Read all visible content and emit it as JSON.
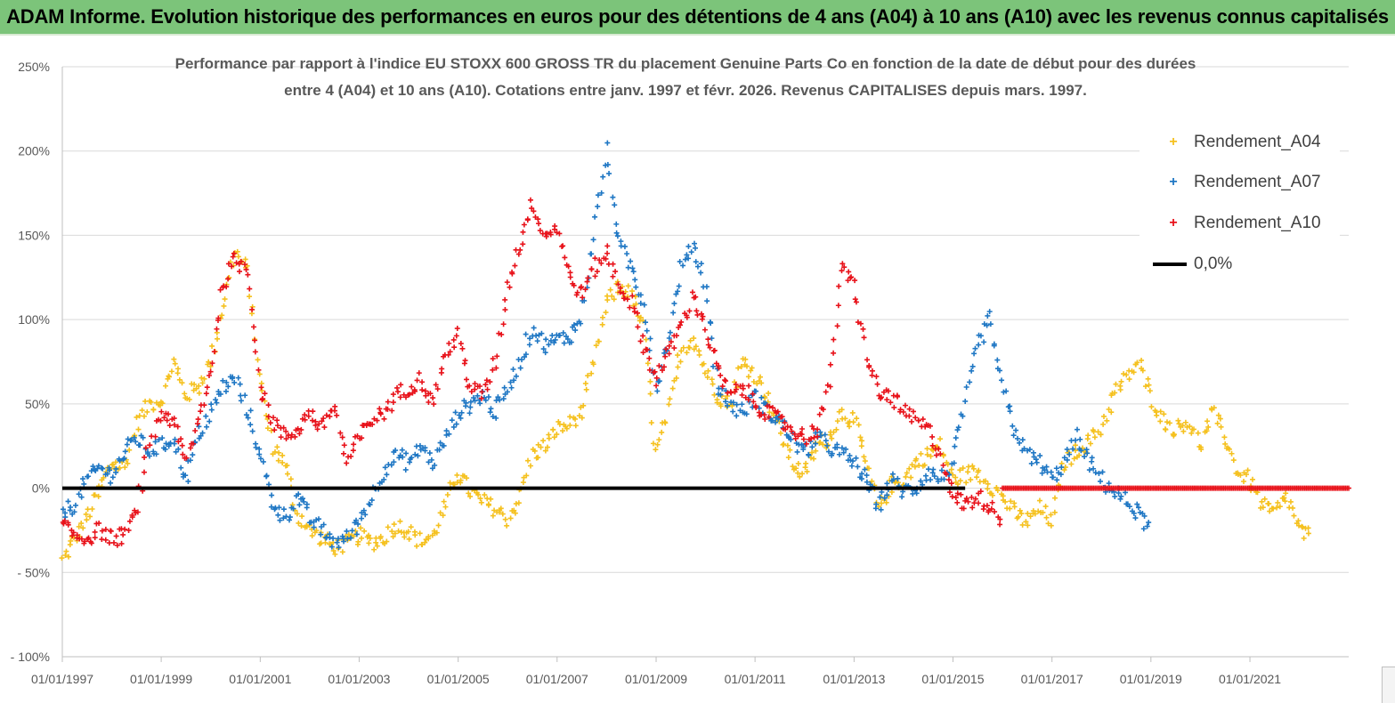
{
  "banner": {
    "title": "ADAM Informe. Evolution historique des performances en euros pour des détentions de 4 ans (A04) à 10 ans (A10) avec les revenus connus capitalisés"
  },
  "chart_data": {
    "type": "scatter",
    "title_line_1": "Performance par rapport à l'indice EU STOXX 600 GROSS TR  du placement Genuine Parts Co en fonction de la date de début pour des durées",
    "title_line_2": "entre 4 (A04) et 10 ans (A10).  Cotations entre janv. 1997 et févr. 2026. Revenus  CAPITALISES depuis mars. 1997.",
    "xlabel": "",
    "ylabel": "",
    "x_range": [
      "1997-01-01",
      "2022-12-31"
    ],
    "ylim": [
      -100,
      250
    ],
    "y_ticks": [
      250,
      200,
      150,
      100,
      50,
      0,
      -50,
      -100
    ],
    "y_tick_labels": [
      "250%",
      "200%",
      "150%",
      "100%",
      "50%",
      "0%",
      "- 50%",
      "- 100%"
    ],
    "x_ticks": [
      "1997-01-01",
      "1999-01-01",
      "2001-01-01",
      "2003-01-01",
      "2005-01-01",
      "2007-01-01",
      "2009-01-01",
      "2011-01-01",
      "2013-01-01",
      "2015-01-01",
      "2017-01-01",
      "2019-01-01",
      "2021-01-01"
    ],
    "x_tick_labels": [
      "01/01/1997",
      "01/01/1999",
      "01/01/2001",
      "01/01/2003",
      "01/01/2005",
      "01/01/2007",
      "01/01/2009",
      "01/01/2011",
      "01/01/2013",
      "01/01/2015",
      "01/01/2017",
      "01/01/2019",
      "01/01/2021"
    ],
    "grid": "horizontal",
    "legend_position": "top-right",
    "series": [
      {
        "name": "Rendement_A04",
        "color": "#f5c11f",
        "points": [
          [
            "1997-01-01",
            -43
          ],
          [
            "1997-04-01",
            -30
          ],
          [
            "1997-07-01",
            -18
          ],
          [
            "1997-10-01",
            -2
          ],
          [
            "1998-01-01",
            15
          ],
          [
            "1998-04-01",
            12
          ],
          [
            "1998-07-01",
            38
          ],
          [
            "1998-10-01",
            50
          ],
          [
            "1999-01-01",
            52
          ],
          [
            "1999-04-01",
            75
          ],
          [
            "1999-07-01",
            55
          ],
          [
            "1999-10-01",
            60
          ],
          [
            "2000-01-01",
            75
          ],
          [
            "2000-04-01",
            110
          ],
          [
            "2000-07-01",
            140
          ],
          [
            "2000-10-01",
            128
          ],
          [
            "2001-01-01",
            60
          ],
          [
            "2001-04-01",
            25
          ],
          [
            "2001-07-01",
            15
          ],
          [
            "2001-10-01",
            -15
          ],
          [
            "2002-01-01",
            -25
          ],
          [
            "2002-04-01",
            -30
          ],
          [
            "2002-07-01",
            -35
          ],
          [
            "2002-10-01",
            -33
          ],
          [
            "2003-01-01",
            -28
          ],
          [
            "2003-04-01",
            -32
          ],
          [
            "2003-07-01",
            -30
          ],
          [
            "2003-10-01",
            -22
          ],
          [
            "2004-01-01",
            -25
          ],
          [
            "2004-04-01",
            -32
          ],
          [
            "2004-07-01",
            -28
          ],
          [
            "2004-10-01",
            -10
          ],
          [
            "2005-01-01",
            10
          ],
          [
            "2005-04-01",
            -2
          ],
          [
            "2005-07-01",
            -8
          ],
          [
            "2005-10-01",
            -12
          ],
          [
            "2006-01-01",
            -18
          ],
          [
            "2006-04-01",
            -5
          ],
          [
            "2006-07-01",
            20
          ],
          [
            "2006-10-01",
            25
          ],
          [
            "2007-01-01",
            35
          ],
          [
            "2007-04-01",
            38
          ],
          [
            "2007-07-01",
            45
          ],
          [
            "2007-10-01",
            75
          ],
          [
            "2008-01-01",
            110
          ],
          [
            "2008-04-01",
            120
          ],
          [
            "2008-07-01",
            115
          ],
          [
            "2008-10-01",
            95
          ],
          [
            "2009-01-01",
            20
          ],
          [
            "2009-04-01",
            45
          ],
          [
            "2009-07-01",
            80
          ],
          [
            "2009-10-01",
            90
          ],
          [
            "2010-01-01",
            70
          ],
          [
            "2010-04-01",
            55
          ],
          [
            "2010-07-01",
            50
          ],
          [
            "2010-10-01",
            75
          ],
          [
            "2011-01-01",
            68
          ],
          [
            "2011-04-01",
            55
          ],
          [
            "2011-07-01",
            35
          ],
          [
            "2011-10-01",
            15
          ],
          [
            "2012-01-01",
            8
          ],
          [
            "2012-04-01",
            25
          ],
          [
            "2012-07-01",
            30
          ],
          [
            "2012-10-01",
            45
          ],
          [
            "2013-01-01",
            40
          ],
          [
            "2013-04-01",
            15
          ],
          [
            "2013-07-01",
            -12
          ],
          [
            "2013-10-01",
            2
          ],
          [
            "2014-01-01",
            5
          ],
          [
            "2014-04-01",
            15
          ],
          [
            "2014-07-01",
            20
          ],
          [
            "2014-10-01",
            25
          ],
          [
            "2015-01-01",
            5
          ],
          [
            "2015-04-01",
            8
          ],
          [
            "2015-07-01",
            10
          ],
          [
            "2015-10-01",
            2
          ],
          [
            "2016-01-01",
            -5
          ],
          [
            "2016-04-01",
            -15
          ],
          [
            "2016-07-01",
            -20
          ],
          [
            "2016-10-01",
            -12
          ],
          [
            "2017-01-01",
            -20
          ],
          [
            "2017-04-01",
            15
          ],
          [
            "2017-07-01",
            22
          ],
          [
            "2017-10-01",
            28
          ],
          [
            "2018-01-01",
            35
          ],
          [
            "2018-04-01",
            55
          ],
          [
            "2018-07-01",
            65
          ],
          [
            "2018-10-01",
            75
          ],
          [
            "2019-01-01",
            55
          ],
          [
            "2019-04-01",
            40
          ],
          [
            "2019-07-01",
            35
          ],
          [
            "2019-10-01",
            40
          ],
          [
            "2020-01-01",
            25
          ],
          [
            "2020-04-01",
            45
          ],
          [
            "2020-07-01",
            30
          ],
          [
            "2020-10-01",
            10
          ],
          [
            "2021-01-01",
            5
          ],
          [
            "2021-04-01",
            -10
          ],
          [
            "2021-07-01",
            -15
          ],
          [
            "2021-10-01",
            -5
          ],
          [
            "2022-01-01",
            -25
          ],
          [
            "2022-04-01",
            -30
          ]
        ]
      },
      {
        "name": "Rendement_A07",
        "color": "#1f77c4",
        "points": [
          [
            "1997-01-01",
            -14
          ],
          [
            "1997-04-01",
            -10
          ],
          [
            "1997-07-01",
            5
          ],
          [
            "1997-10-01",
            12
          ],
          [
            "1998-01-01",
            8
          ],
          [
            "1998-04-01",
            20
          ],
          [
            "1998-07-01",
            30
          ],
          [
            "1998-10-01",
            22
          ],
          [
            "1999-01-01",
            25
          ],
          [
            "1999-04-01",
            30
          ],
          [
            "1999-07-01",
            5
          ],
          [
            "1999-10-01",
            30
          ],
          [
            "2000-01-01",
            45
          ],
          [
            "2000-04-01",
            60
          ],
          [
            "2000-07-01",
            65
          ],
          [
            "2000-10-01",
            45
          ],
          [
            "2001-01-01",
            20
          ],
          [
            "2001-04-01",
            -8
          ],
          [
            "2001-07-01",
            -18
          ],
          [
            "2001-10-01",
            -5
          ],
          [
            "2002-01-01",
            -18
          ],
          [
            "2002-04-01",
            -25
          ],
          [
            "2002-07-01",
            -32
          ],
          [
            "2002-10-01",
            -30
          ],
          [
            "2003-01-01",
            -20
          ],
          [
            "2003-04-01",
            -5
          ],
          [
            "2003-07-01",
            10
          ],
          [
            "2003-10-01",
            20
          ],
          [
            "2004-01-01",
            15
          ],
          [
            "2004-04-01",
            25
          ],
          [
            "2004-07-01",
            15
          ],
          [
            "2004-10-01",
            30
          ],
          [
            "2005-01-01",
            45
          ],
          [
            "2005-04-01",
            50
          ],
          [
            "2005-07-01",
            55
          ],
          [
            "2005-10-01",
            45
          ],
          [
            "2006-01-01",
            60
          ],
          [
            "2006-04-01",
            75
          ],
          [
            "2006-07-01",
            95
          ],
          [
            "2006-10-01",
            85
          ],
          [
            "2007-01-01",
            88
          ],
          [
            "2007-04-01",
            90
          ],
          [
            "2007-07-01",
            100
          ],
          [
            "2007-10-01",
            150
          ],
          [
            "2008-01-01",
            200
          ],
          [
            "2008-04-01",
            145
          ],
          [
            "2008-07-01",
            130
          ],
          [
            "2008-10-01",
            110
          ],
          [
            "2009-01-01",
            60
          ],
          [
            "2009-04-01",
            90
          ],
          [
            "2009-07-01",
            130
          ],
          [
            "2009-10-01",
            145
          ],
          [
            "2010-01-01",
            120
          ],
          [
            "2010-04-01",
            60
          ],
          [
            "2010-07-01",
            50
          ],
          [
            "2010-10-01",
            45
          ],
          [
            "2011-01-01",
            55
          ],
          [
            "2011-04-01",
            45
          ],
          [
            "2011-07-01",
            40
          ],
          [
            "2011-10-01",
            30
          ],
          [
            "2012-01-01",
            20
          ],
          [
            "2012-04-01",
            30
          ],
          [
            "2012-07-01",
            25
          ],
          [
            "2012-10-01",
            20
          ],
          [
            "2013-01-01",
            15
          ],
          [
            "2013-04-01",
            5
          ],
          [
            "2013-07-01",
            -10
          ],
          [
            "2013-10-01",
            5
          ],
          [
            "2014-01-01",
            -2
          ],
          [
            "2014-04-01",
            0
          ],
          [
            "2014-07-01",
            10
          ],
          [
            "2014-10-01",
            5
          ],
          [
            "2015-01-01",
            15
          ],
          [
            "2015-04-01",
            50
          ],
          [
            "2015-07-01",
            85
          ],
          [
            "2015-10-01",
            100
          ],
          [
            "2016-01-01",
            60
          ],
          [
            "2016-04-01",
            35
          ],
          [
            "2016-07-01",
            20
          ],
          [
            "2016-10-01",
            15
          ],
          [
            "2017-01-01",
            5
          ],
          [
            "2017-04-01",
            15
          ],
          [
            "2017-07-01",
            30
          ],
          [
            "2017-10-01",
            15
          ],
          [
            "2018-01-01",
            5
          ],
          [
            "2018-04-01",
            -2
          ],
          [
            "2018-07-01",
            -8
          ],
          [
            "2018-10-01",
            -15
          ],
          [
            "2019-01-01",
            -25
          ]
        ]
      },
      {
        "name": "Rendement_A10",
        "color": "#e8121a",
        "points": [
          [
            "1997-01-01",
            -22
          ],
          [
            "1997-04-01",
            -28
          ],
          [
            "1997-07-01",
            -30
          ],
          [
            "1997-10-01",
            -25
          ],
          [
            "1998-01-01",
            -30
          ],
          [
            "1998-04-01",
            -28
          ],
          [
            "1998-07-01",
            -15
          ],
          [
            "1998-10-01",
            25
          ],
          [
            "1999-01-01",
            45
          ],
          [
            "1999-04-01",
            40
          ],
          [
            "1999-07-01",
            15
          ],
          [
            "1999-10-01",
            40
          ],
          [
            "2000-01-01",
            70
          ],
          [
            "2000-04-01",
            120
          ],
          [
            "2000-07-01",
            135
          ],
          [
            "2000-10-01",
            130
          ],
          [
            "2001-01-01",
            60
          ],
          [
            "2001-04-01",
            40
          ],
          [
            "2001-07-01",
            30
          ],
          [
            "2001-10-01",
            35
          ],
          [
            "2002-01-01",
            45
          ],
          [
            "2002-04-01",
            35
          ],
          [
            "2002-07-01",
            50
          ],
          [
            "2002-10-01",
            15
          ],
          [
            "2003-01-01",
            30
          ],
          [
            "2003-04-01",
            40
          ],
          [
            "2003-07-01",
            45
          ],
          [
            "2003-10-01",
            55
          ],
          [
            "2004-01-01",
            60
          ],
          [
            "2004-04-01",
            65
          ],
          [
            "2004-07-01",
            50
          ],
          [
            "2004-10-01",
            80
          ],
          [
            "2005-01-01",
            90
          ],
          [
            "2005-04-01",
            60
          ],
          [
            "2005-07-01",
            55
          ],
          [
            "2005-10-01",
            75
          ],
          [
            "2006-01-01",
            120
          ],
          [
            "2006-04-01",
            145
          ],
          [
            "2006-07-01",
            170
          ],
          [
            "2006-10-01",
            150
          ],
          [
            "2007-01-01",
            155
          ],
          [
            "2007-04-01",
            125
          ],
          [
            "2007-07-01",
            115
          ],
          [
            "2007-10-01",
            130
          ],
          [
            "2008-01-01",
            140
          ],
          [
            "2008-04-01",
            120
          ],
          [
            "2008-07-01",
            110
          ],
          [
            "2008-10-01",
            85
          ],
          [
            "2009-01-01",
            65
          ],
          [
            "2009-04-01",
            80
          ],
          [
            "2009-07-01",
            95
          ],
          [
            "2009-10-01",
            115
          ],
          [
            "2010-01-01",
            95
          ],
          [
            "2010-04-01",
            70
          ],
          [
            "2010-07-01",
            55
          ],
          [
            "2010-10-01",
            60
          ],
          [
            "2011-01-01",
            50
          ],
          [
            "2011-04-01",
            45
          ],
          [
            "2011-07-01",
            40
          ],
          [
            "2011-10-01",
            35
          ],
          [
            "2012-01-01",
            30
          ],
          [
            "2012-04-01",
            35
          ],
          [
            "2012-07-01",
            60
          ],
          [
            "2012-10-01",
            130
          ],
          [
            "2013-01-01",
            120
          ],
          [
            "2013-04-01",
            80
          ],
          [
            "2013-07-01",
            55
          ],
          [
            "2013-10-01",
            55
          ],
          [
            "2014-01-01",
            45
          ],
          [
            "2014-04-01",
            40
          ],
          [
            "2014-07-01",
            35
          ],
          [
            "2014-10-01",
            20
          ],
          [
            "2015-01-01",
            -5
          ],
          [
            "2015-04-01",
            -10
          ],
          [
            "2015-07-01",
            -5
          ],
          [
            "2015-10-01",
            -10
          ],
          [
            "2016-01-01",
            -20
          ]
        ]
      },
      {
        "name": "0,0%",
        "color": "#000000",
        "type": "line",
        "points": [
          [
            "1997-01-01",
            0
          ],
          [
            "2015-04-01",
            0
          ]
        ]
      }
    ],
    "a10_zero_tail_range": [
      "2016-01-01",
      "2022-12-31"
    ]
  }
}
